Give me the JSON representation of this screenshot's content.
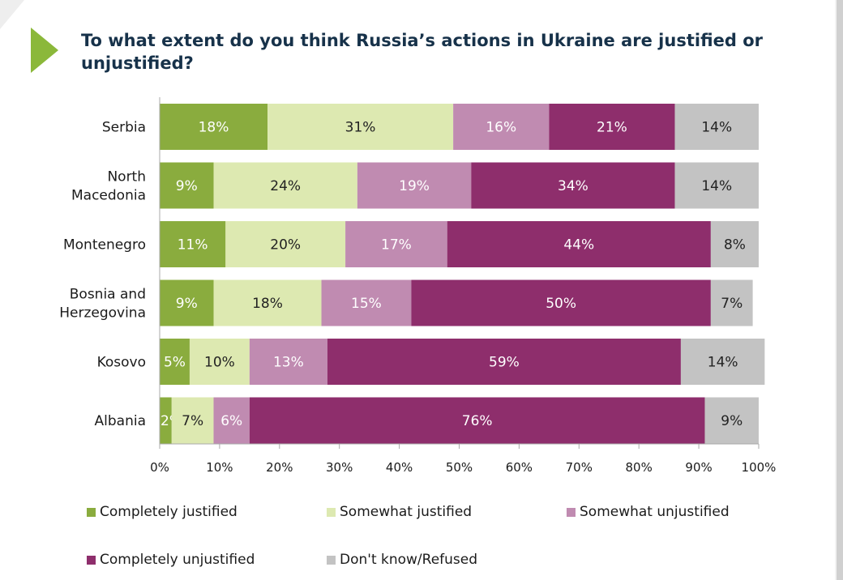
{
  "title": "To what extent do you think Russia’s actions in Ukraine are justified or unjustified?",
  "colors": {
    "accent": "#8bb83a",
    "completely_justified": "#8aac3e",
    "somewhat_justified": "#dde9b1",
    "somewhat_unjustified": "#c08bb1",
    "completely_unjustified": "#8e2e6c",
    "dont_know": "#c3c3c3",
    "frame": "#d0d0d0"
  },
  "chart_data": {
    "type": "bar",
    "orientation": "horizontal",
    "stacked": true,
    "categories": [
      "Serbia",
      "North Macedonia",
      "Montenegro",
      "Bosnia and Herzegovina",
      "Kosovo",
      "Albania"
    ],
    "category_lines": [
      [
        "Serbia"
      ],
      [
        "North",
        "Macedonia"
      ],
      [
        "Montenegro"
      ],
      [
        "Bosnia and",
        "Herzegovina"
      ],
      [
        "Kosovo"
      ],
      [
        "Albania"
      ]
    ],
    "series": [
      {
        "name": "Completely justified",
        "color": "#8aac3e",
        "label_color": "#ffffff",
        "values": [
          18,
          9,
          11,
          9,
          5,
          2
        ]
      },
      {
        "name": "Somewhat justified",
        "color": "#dde9b1",
        "label_color": "#222222",
        "values": [
          31,
          24,
          20,
          18,
          10,
          7
        ]
      },
      {
        "name": "Somewhat unjustified",
        "color": "#c08bb1",
        "label_color": "#ffffff",
        "values": [
          16,
          19,
          17,
          15,
          13,
          6
        ]
      },
      {
        "name": "Completely unjustified",
        "color": "#8e2e6c",
        "label_color": "#ffffff",
        "values": [
          21,
          34,
          44,
          50,
          59,
          76
        ]
      },
      {
        "name": "Don't know/Refused",
        "color": "#c3c3c3",
        "label_color": "#222222",
        "values": [
          14,
          14,
          8,
          7,
          14,
          9
        ]
      }
    ],
    "xlim": [
      0,
      100
    ],
    "x_ticks": [
      "0%",
      "10%",
      "20%",
      "30%",
      "40%",
      "50%",
      "60%",
      "70%",
      "80%",
      "90%",
      "100%"
    ],
    "xlabel": "",
    "ylabel": "",
    "legend_position": "bottom",
    "grid": false
  }
}
